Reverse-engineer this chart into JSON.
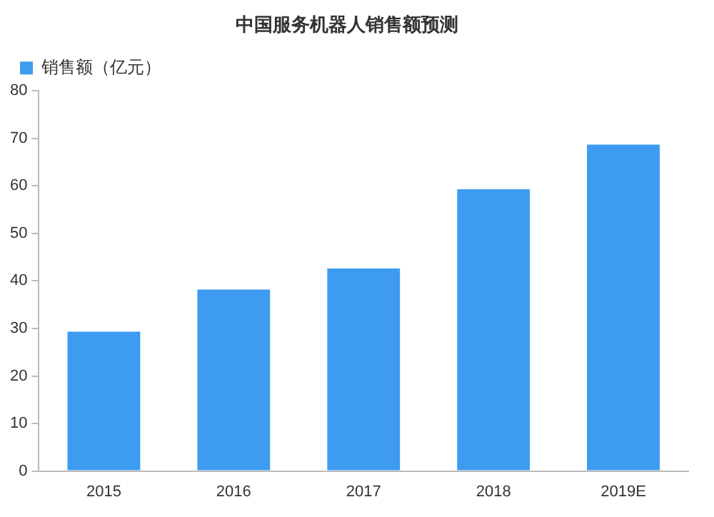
{
  "chart_data": {
    "type": "bar",
    "title": "中国服务机器人销售额预测",
    "categories": [
      "2015",
      "2016",
      "2017",
      "2018",
      "2019E"
    ],
    "series": [
      {
        "name": "销售额（亿元）",
        "color": "#3d9cf0",
        "values": [
          29.3,
          38.2,
          42.6,
          59.3,
          68.7
        ]
      }
    ],
    "ylim": [
      0,
      80
    ],
    "yticks": [
      0,
      10,
      20,
      30,
      40,
      50,
      60,
      70,
      80
    ],
    "grid": false,
    "legend": "top"
  }
}
